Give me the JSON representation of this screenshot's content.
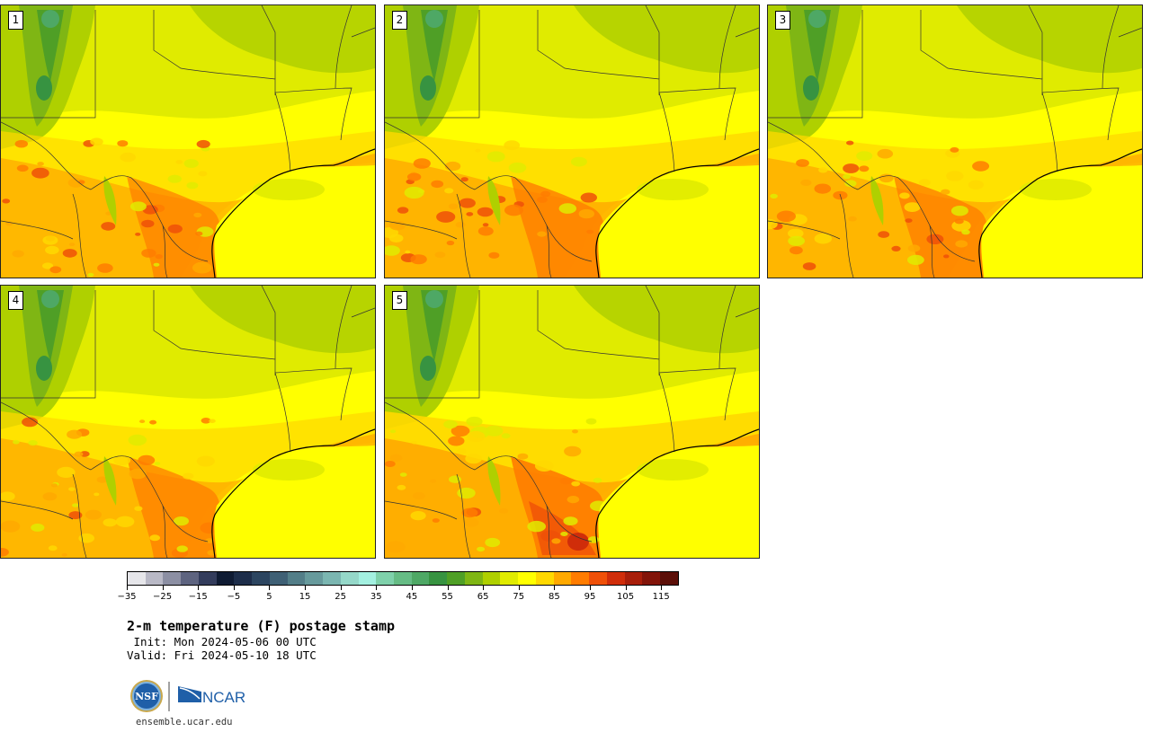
{
  "figure": {
    "title": "2-m temperature (F) postage stamp",
    "init_line": " Init: Mon 2024-05-06 00 UTC",
    "valid_line": "Valid: Fri 2024-05-10 18 UTC",
    "website": "ensemble.ucar.edu"
  },
  "panels": [
    {
      "label": "1",
      "warmth": 0.35
    },
    {
      "label": "2",
      "warmth": 0.55
    },
    {
      "label": "3",
      "warmth": 0.45
    },
    {
      "label": "4",
      "warmth": 0.4
    },
    {
      "label": "5",
      "warmth": 0.8
    }
  ],
  "colorbar": {
    "tick_labels": [
      "−35",
      "−25",
      "−15",
      "−5",
      "5",
      "15",
      "25",
      "35",
      "45",
      "55",
      "65",
      "75",
      "85",
      "95",
      "105",
      "115"
    ],
    "colors": [
      "#e6e6ea",
      "#b9b9c6",
      "#8c8fa3",
      "#5e6480",
      "#333c5c",
      "#0f1b33",
      "#1d2d4a",
      "#2c4560",
      "#3f6075",
      "#537e88",
      "#679a9c",
      "#7bb6b1",
      "#95d8c9",
      "#a3f0e0",
      "#7fd1ab",
      "#66bc85",
      "#4ea865",
      "#379341",
      "#4f9f26",
      "#7fb614",
      "#afd000",
      "#e0eb00",
      "#ffff00",
      "#ffd800",
      "#ffa900",
      "#ff7c00",
      "#ef5008",
      "#d02d0a",
      "#a81e0a",
      "#821409",
      "#5c0f08"
    ]
  },
  "logos": {
    "nsf": "NSF",
    "ncar": "NCAR"
  }
}
